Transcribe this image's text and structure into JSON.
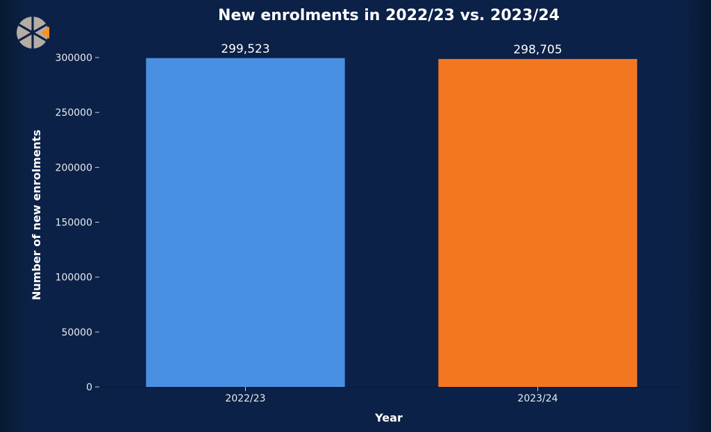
{
  "chart_data": {
    "type": "bar",
    "title": "New enrolments in 2022/23 vs. 2023/24",
    "xlabel": "Year",
    "ylabel": "Number of new enrolments",
    "categories": [
      "2022/23",
      "2023/24"
    ],
    "values": [
      299523,
      298705
    ],
    "data_labels": [
      "299,523",
      "298,705"
    ],
    "bar_colors": [
      "#4a90e2",
      "#f37721"
    ],
    "ylim": [
      0,
      300000
    ],
    "yticks": [
      0,
      50000,
      100000,
      150000,
      200000,
      250000,
      300000
    ],
    "grid": false,
    "legend": "none"
  },
  "logo": {
    "name": "logo-icon",
    "colors": [
      "#b5aca3",
      "#f7941d"
    ]
  },
  "colors": {
    "background": "#0c2147",
    "text": "#ffffff"
  }
}
